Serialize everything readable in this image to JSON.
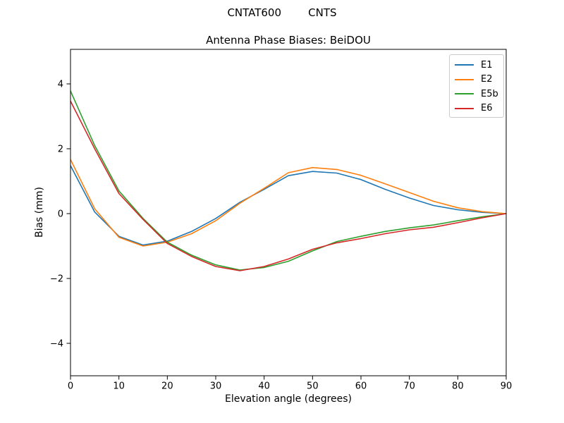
{
  "figure": {
    "suptitle": "CNTAT600        CNTS"
  },
  "chart_data": {
    "type": "line",
    "title": "Antenna Phase Biases: BeiDOU",
    "xlabel": "Elevation angle (degrees)",
    "ylabel": "Bias (mm)",
    "xlim": [
      0,
      90
    ],
    "ylim": [
      -5,
      5
    ],
    "xticks": [
      0,
      10,
      20,
      30,
      40,
      50,
      60,
      70,
      80,
      90
    ],
    "yticks": [
      -4,
      -2,
      0,
      2,
      4
    ],
    "grid": false,
    "legend_position": "upper right",
    "x": [
      0,
      5,
      10,
      15,
      20,
      25,
      30,
      35,
      40,
      45,
      50,
      55,
      60,
      65,
      70,
      75,
      80,
      85,
      90
    ],
    "series": [
      {
        "name": "E1",
        "color": "#1f77b4",
        "values": [
          1.48,
          0.05,
          -0.7,
          -0.97,
          -0.85,
          -0.55,
          -0.15,
          0.35,
          0.75,
          1.17,
          1.3,
          1.25,
          1.05,
          0.75,
          0.48,
          0.25,
          0.12,
          0.04,
          0.0
        ]
      },
      {
        "name": "E2",
        "color": "#ff7f0e",
        "values": [
          1.67,
          0.15,
          -0.73,
          -1.0,
          -0.88,
          -0.62,
          -0.22,
          0.32,
          0.78,
          1.26,
          1.42,
          1.36,
          1.18,
          0.92,
          0.65,
          0.38,
          0.18,
          0.06,
          0.0
        ]
      },
      {
        "name": "E5b",
        "color": "#2ca02c",
        "values": [
          3.78,
          2.1,
          0.7,
          -0.15,
          -0.88,
          -1.28,
          -1.58,
          -1.74,
          -1.66,
          -1.47,
          -1.15,
          -0.86,
          -0.7,
          -0.55,
          -0.44,
          -0.35,
          -0.22,
          -0.1,
          0.0
        ]
      },
      {
        "name": "E6",
        "color": "#d62728",
        "values": [
          3.47,
          2.0,
          0.62,
          -0.18,
          -0.92,
          -1.32,
          -1.63,
          -1.76,
          -1.63,
          -1.4,
          -1.1,
          -0.9,
          -0.77,
          -0.62,
          -0.5,
          -0.42,
          -0.28,
          -0.13,
          0.0
        ]
      }
    ]
  }
}
